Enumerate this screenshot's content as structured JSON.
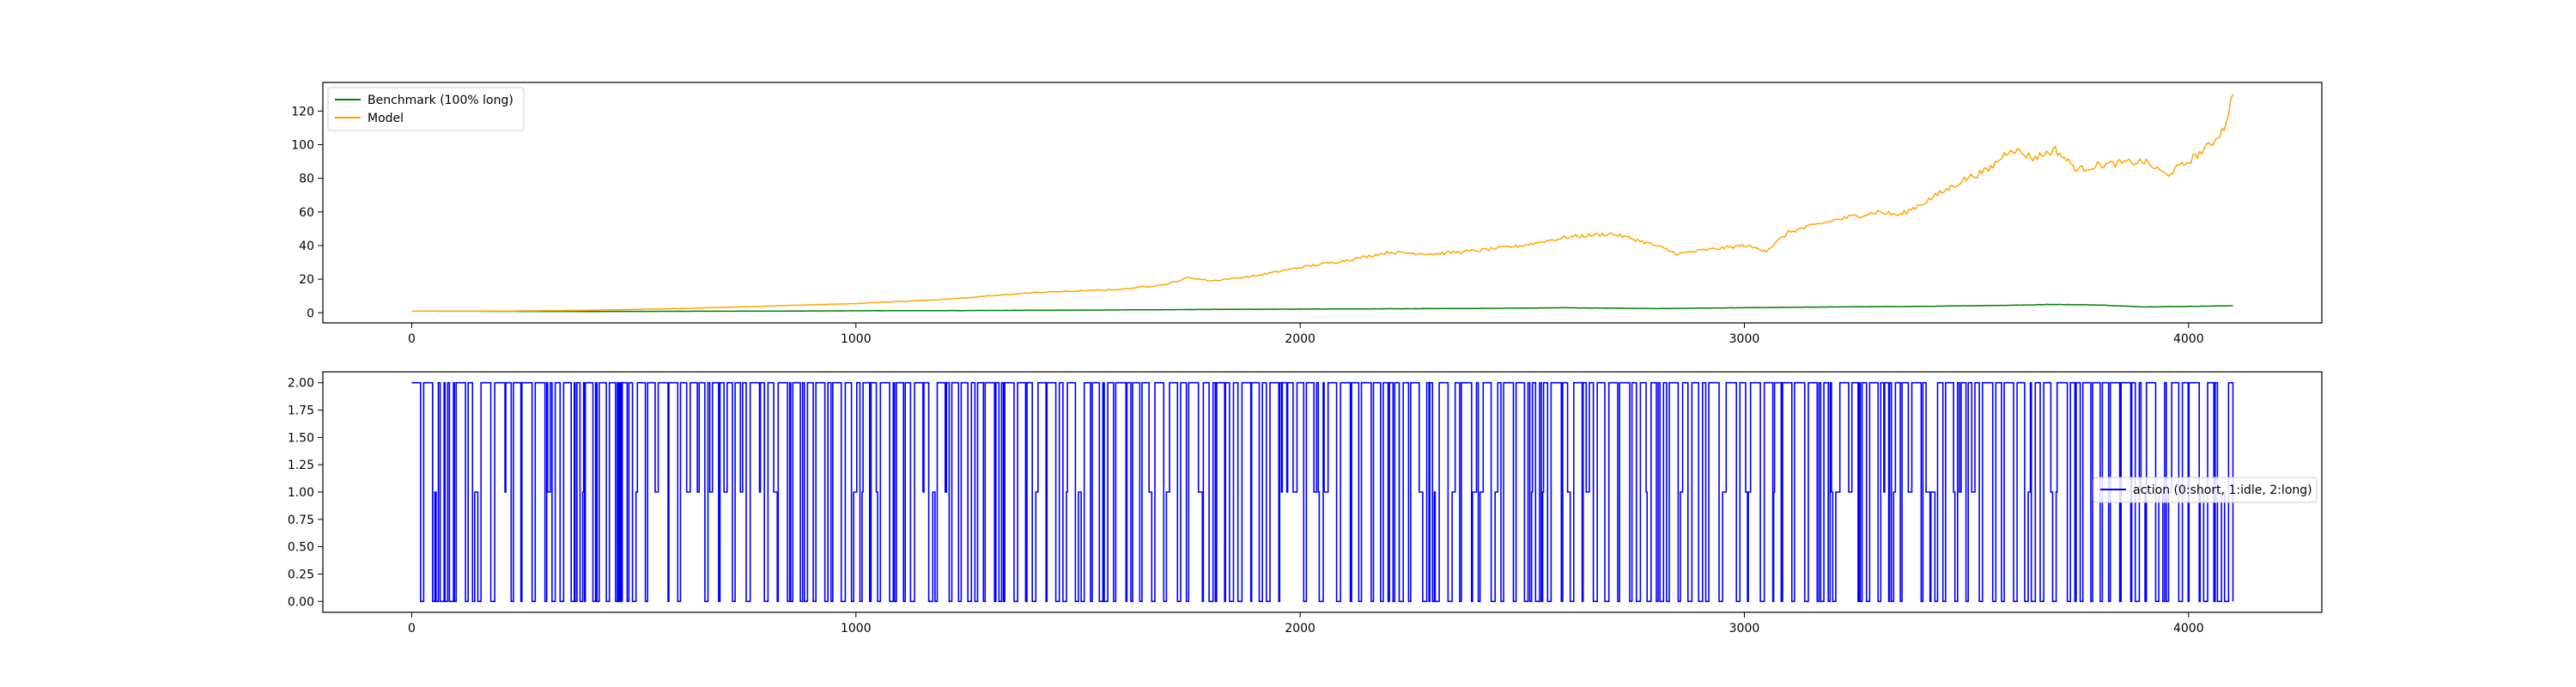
{
  "chart_data": [
    {
      "type": "line",
      "x_ticks": [
        0,
        1000,
        2000,
        3000,
        4000
      ],
      "y_ticks": [
        0,
        20,
        40,
        60,
        80,
        100,
        120
      ],
      "xlim": [
        -200,
        4300
      ],
      "ylim": [
        -6,
        137
      ],
      "grid": false,
      "legend_position": "top-left",
      "series": [
        {
          "name": "Benchmark (100% long)",
          "color": "#008000",
          "points": [
            [
              0,
              1.0
            ],
            [
              200,
              0.9
            ],
            [
              400,
              0.8
            ],
            [
              600,
              0.9
            ],
            [
              800,
              1.0
            ],
            [
              1000,
              1.2
            ],
            [
              1200,
              1.3
            ],
            [
              1400,
              1.5
            ],
            [
              1600,
              1.7
            ],
            [
              1800,
              2.0
            ],
            [
              2000,
              2.2
            ],
            [
              2200,
              2.4
            ],
            [
              2400,
              2.6
            ],
            [
              2600,
              3.0
            ],
            [
              2800,
              2.5
            ],
            [
              3000,
              3.0
            ],
            [
              3200,
              3.5
            ],
            [
              3400,
              3.8
            ],
            [
              3600,
              4.5
            ],
            [
              3700,
              5.0
            ],
            [
              3800,
              4.6
            ],
            [
              3900,
              3.5
            ],
            [
              4000,
              3.8
            ],
            [
              4100,
              4.2
            ]
          ]
        },
        {
          "name": "Model",
          "color": "#FFA500",
          "points": [
            [
              0,
              1.0
            ],
            [
              200,
              1.0
            ],
            [
              400,
              1.5
            ],
            [
              600,
              2.5
            ],
            [
              800,
              4.0
            ],
            [
              1000,
              5.5
            ],
            [
              1200,
              8.0
            ],
            [
              1400,
              12
            ],
            [
              1600,
              14
            ],
            [
              1700,
              17
            ],
            [
              1750,
              21
            ],
            [
              1800,
              19
            ],
            [
              1900,
              22
            ],
            [
              2000,
              27
            ],
            [
              2100,
              31
            ],
            [
              2200,
              36
            ],
            [
              2300,
              35
            ],
            [
              2400,
              37
            ],
            [
              2500,
              40
            ],
            [
              2600,
              45
            ],
            [
              2700,
              47
            ],
            [
              2750,
              44
            ],
            [
              2800,
              40
            ],
            [
              2850,
              35
            ],
            [
              2900,
              37
            ],
            [
              3000,
              40
            ],
            [
              3050,
              37
            ],
            [
              3100,
              48
            ],
            [
              3200,
              55
            ],
            [
              3300,
              60
            ],
            [
              3350,
              58
            ],
            [
              3400,
              65
            ],
            [
              3500,
              80
            ],
            [
              3550,
              85
            ],
            [
              3600,
              98
            ],
            [
              3650,
              92
            ],
            [
              3700,
              97
            ],
            [
              3750,
              85
            ],
            [
              3800,
              88
            ],
            [
              3900,
              90
            ],
            [
              3950,
              82
            ],
            [
              4000,
              90
            ],
            [
              4050,
              100
            ],
            [
              4080,
              110
            ],
            [
              4100,
              130
            ]
          ]
        }
      ]
    },
    {
      "type": "line",
      "step": true,
      "x_ticks": [
        0,
        1000,
        2000,
        3000,
        4000
      ],
      "y_ticks": [
        "0.00",
        "0.25",
        "0.50",
        "0.75",
        "1.00",
        "1.25",
        "1.50",
        "1.75",
        "2.00"
      ],
      "xlim": [
        -200,
        4300
      ],
      "ylim": [
        -0.1,
        2.1
      ],
      "grid": false,
      "legend_position": "center-right",
      "levels": [
        0,
        1,
        2
      ],
      "x_range": [
        0,
        4100
      ],
      "series": [
        {
          "name": "action (0:short, 1:idle, 2:long)",
          "color": "#0000FF"
        }
      ]
    }
  ]
}
